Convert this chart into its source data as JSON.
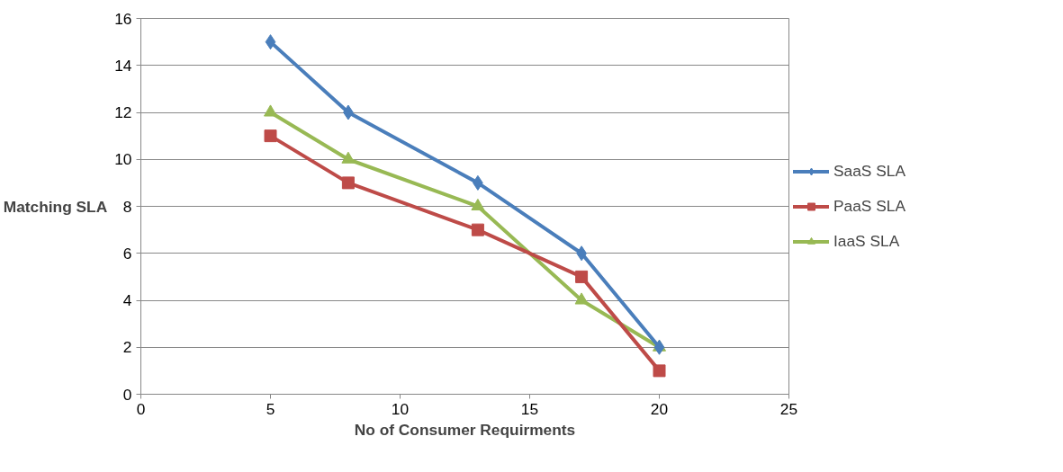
{
  "chart_data": {
    "type": "line",
    "xlabel": "No of Consumer Requirments",
    "ylabel": "Matching SLA",
    "x": [
      5,
      8,
      13,
      17,
      20
    ],
    "series": [
      {
        "name": "SaaS SLA",
        "color": "#4a7ebb",
        "marker": "diamond",
        "values": [
          15,
          12,
          9,
          6,
          2
        ]
      },
      {
        "name": "PaaS SLA",
        "color": "#be4b48",
        "marker": "square",
        "values": [
          11,
          9,
          7,
          5,
          1
        ]
      },
      {
        "name": "IaaS SLA",
        "color": "#98b954",
        "marker": "triangle",
        "values": [
          12,
          10,
          8,
          4,
          2
        ]
      }
    ],
    "xlim": [
      0,
      25
    ],
    "xticks": [
      0,
      5,
      10,
      15,
      20,
      25
    ],
    "ylim": [
      0,
      16
    ],
    "yticks": [
      0,
      2,
      4,
      6,
      8,
      10,
      12,
      14,
      16
    ],
    "grid": "y",
    "legend": "right",
    "line_style": "solid"
  }
}
